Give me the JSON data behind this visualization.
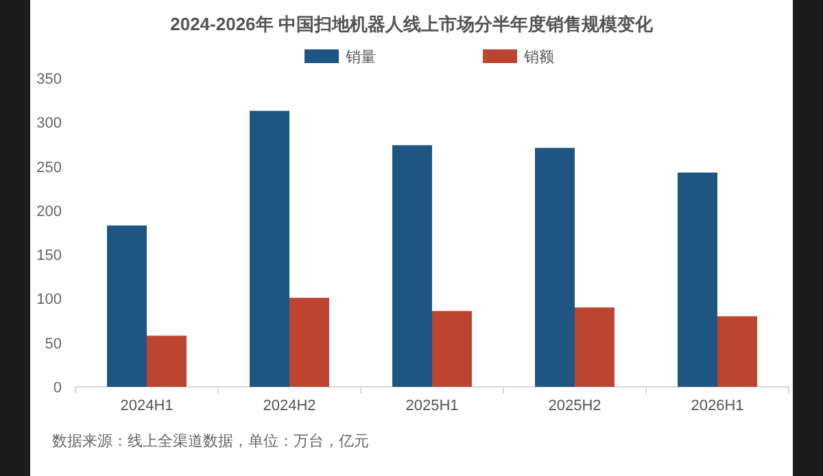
{
  "chart_data": {
    "type": "bar",
    "title": "2024-2026年 中国扫地机器人线上市场分半年度销售规模变化",
    "categories": [
      "2024H1",
      "2024H2",
      "2025H1",
      "2025H2",
      "2026H1"
    ],
    "series": [
      {
        "name": "销量",
        "color": "#1f5582",
        "values": [
          183,
          313,
          274,
          271,
          243
        ]
      },
      {
        "name": "销额",
        "color": "#bd4431",
        "values": [
          58,
          101,
          86,
          90,
          80
        ]
      }
    ],
    "ylim": [
      0,
      350
    ],
    "yticks": [
      0,
      50,
      100,
      150,
      200,
      250,
      300,
      350
    ],
    "legend": "top",
    "grid": false,
    "annotations": [
      "数据来源：线上全渠道数据，单位：万台，亿元"
    ]
  }
}
